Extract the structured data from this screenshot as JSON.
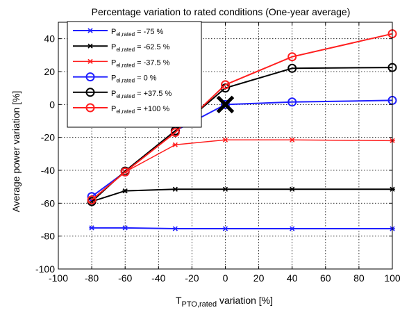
{
  "chart_data": {
    "type": "line",
    "title": "Percentage variation to rated conditions (One-year average)",
    "xlabel_main": "T",
    "xlabel_sub": "PTO,rated",
    "xlabel_rest": " variation [%]",
    "ylabel": "Average power variation [%]",
    "xlim": [
      -100,
      100
    ],
    "ylim": [
      -100,
      50
    ],
    "xticks": [
      -100,
      -80,
      -60,
      -40,
      -20,
      0,
      20,
      40,
      60,
      80,
      100
    ],
    "yticks": [
      40,
      20,
      0,
      -20,
      -40,
      -60,
      -80,
      -100
    ],
    "grid": true,
    "legend_position": "top-left",
    "series": [
      {
        "name_main": "P",
        "name_sub": "el,rated",
        "name_rest": " = -75 %",
        "color": "#1f1fff",
        "marker": "star",
        "line_width": 2,
        "x": [
          -80,
          -60,
          -30,
          0,
          40,
          100
        ],
        "y": [
          -75,
          -75,
          -75.5,
          -75.5,
          -75.5,
          -75.5
        ]
      },
      {
        "name_main": "P",
        "name_sub": "el,rated",
        "name_rest": " = -62.5 %",
        "color": "#000000",
        "marker": "star",
        "line_width": 2,
        "x": [
          -80,
          -60,
          -30,
          0,
          40,
          100
        ],
        "y": [
          -59,
          -52.5,
          -51.5,
          -51.5,
          -51.5,
          -51.5
        ]
      },
      {
        "name_main": "P",
        "name_sub": "el,rated",
        "name_rest": " = -37.5 %",
        "color": "#ff1f1f",
        "marker": "star",
        "line_width": 1.5,
        "x": [
          -80,
          -60,
          -30,
          0,
          40,
          100
        ],
        "y": [
          -58,
          -41,
          -24.5,
          -21.5,
          -21.5,
          -22
        ]
      },
      {
        "name_main": "P",
        "name_sub": "el,rated",
        "name_rest": " = 0 %",
        "color": "#1f1fff",
        "marker": "circle",
        "line_width": 2,
        "x": [
          -80,
          -60,
          -30,
          0,
          40,
          100
        ],
        "y": [
          -56,
          -41,
          -16,
          0,
          1.5,
          2.5
        ]
      },
      {
        "name_main": "P",
        "name_sub": "el,rated",
        "name_rest": " = +37.5 %",
        "color": "#000000",
        "marker": "circle",
        "line_width": 2,
        "x": [
          -80,
          -60,
          -30,
          0,
          40,
          100
        ],
        "y": [
          -59,
          -40.5,
          -16,
          10,
          22,
          22.5
        ]
      },
      {
        "name_main": "P",
        "name_sub": "el,rated",
        "name_rest": " = +100 %",
        "color": "#ff1f1f",
        "marker": "circle",
        "line_width": 2,
        "x": [
          -80,
          -60,
          -30,
          0,
          40,
          100
        ],
        "y": [
          -58,
          -41,
          -17,
          12,
          29,
          43
        ]
      }
    ],
    "annotations": [
      {
        "type": "cross-marker",
        "color": "#000000",
        "x": 0,
        "y": 0
      }
    ]
  }
}
